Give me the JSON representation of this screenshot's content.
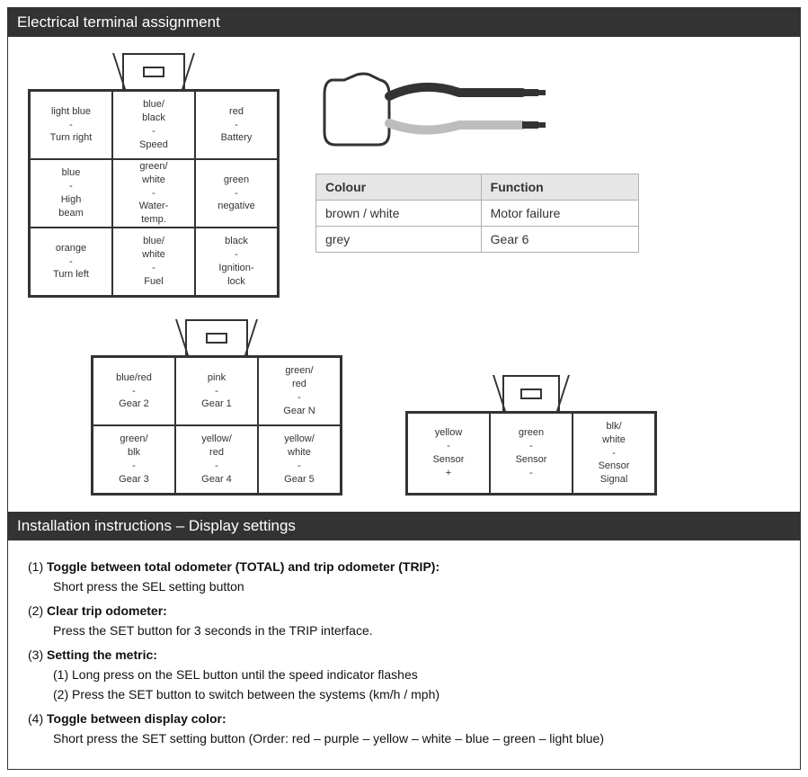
{
  "header1": "Electrical terminal assignment",
  "header2": "Installation instructions – Display settings",
  "connectorA": {
    "cells": [
      {
        "color": "light blue",
        "func": "Turn right"
      },
      {
        "color": "blue/\nblack",
        "func": "Speed"
      },
      {
        "color": "red",
        "func": "Battery"
      },
      {
        "color": "blue",
        "func": "High\nbeam"
      },
      {
        "color": "green/\nwhite",
        "func": "Water-\ntemp."
      },
      {
        "color": "green",
        "func": "negative"
      },
      {
        "color": "orange",
        "func": "Turn left"
      },
      {
        "color": "blue/\nwhite",
        "func": "Fuel"
      },
      {
        "color": "black",
        "func": "Ignition-\nlock"
      }
    ]
  },
  "connectorB": {
    "cells": [
      {
        "color": "blue/red",
        "func": "Gear 2"
      },
      {
        "color": "pink",
        "func": "Gear 1"
      },
      {
        "color": "green/\nred",
        "func": "Gear N"
      },
      {
        "color": "green/\nblk",
        "func": "Gear 3"
      },
      {
        "color": "yellow/\nred",
        "func": "Gear 4"
      },
      {
        "color": "yellow/\nwhite",
        "func": "Gear 5"
      }
    ]
  },
  "connectorC": {
    "cells": [
      {
        "color": "yellow",
        "func": "Sensor\n+"
      },
      {
        "color": "green",
        "func": "Sensor\n-"
      },
      {
        "color": "blk/\nwhite",
        "func": "Sensor\nSignal"
      }
    ]
  },
  "colorTable": {
    "headers": [
      "Colour",
      "Function"
    ],
    "rows": [
      [
        "brown / white",
        "Motor failure"
      ],
      [
        "grey",
        "Gear 6"
      ]
    ]
  },
  "cable": {
    "body_stroke": "#333333",
    "wire1_color": "#333333",
    "wire2_color": "#bdbdbd",
    "pin_color": "#333333"
  },
  "instructions": [
    {
      "num": "(1)",
      "title": "Toggle between total odometer (TOTAL) and trip odometer (TRIP):",
      "desc": "Short press the SEL setting button"
    },
    {
      "num": "(2)",
      "title": "Clear trip odometer:",
      "desc": "Press the SET button for 3 seconds in the TRIP interface."
    },
    {
      "num": "(3)",
      "title": "Setting the metric:",
      "subs": [
        "(1)  Long press on the SEL button until the speed indicator flashes",
        "(2)  Press the SET button to switch between the systems (km/h / mph)"
      ]
    },
    {
      "num": "(4)",
      "title": "Toggle between display color:",
      "desc": "Short press the SET setting button (Order: red – purple – yellow – white – blue – green – light blue)"
    }
  ],
  "style": {
    "border_color": "#333333",
    "header_bg": "#333333",
    "header_fg": "#ffffff",
    "table_header_bg": "#e6e6e6",
    "table_border": "#b0b0b0",
    "cell_font_size": 11,
    "body_font_size": 14
  }
}
